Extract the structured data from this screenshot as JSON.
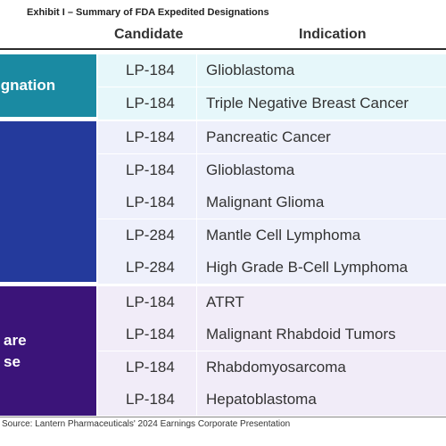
{
  "exhibit_title": "Exhibit I – Summary of FDA Expedited Designations",
  "headers": {
    "candidate": "Candidate",
    "indication": "Indication"
  },
  "groups": [
    {
      "label": "ignation",
      "color": "#1a8aa2"
    },
    {
      "label": "",
      "color": "#243a9c"
    },
    {
      "label_lines": [
        "are",
        "se"
      ],
      "color": "#3b1479"
    }
  ],
  "rows": [
    {
      "candidate": "LP-184",
      "indication": "Glioblastoma"
    },
    {
      "candidate": "LP-184",
      "indication": "Triple Negative Breast Cancer"
    },
    {
      "candidate": "LP-184",
      "indication": "Pancreatic Cancer"
    },
    {
      "candidate": "LP-184",
      "indication": "Glioblastoma"
    },
    {
      "candidate": "LP-184",
      "indication": "Malignant Glioma"
    },
    {
      "candidate": "LP-284",
      "indication": "Mantle Cell Lymphoma"
    },
    {
      "candidate": "LP-284",
      "indication": "High Grade B-Cell Lymphoma"
    },
    {
      "candidate": "LP-184",
      "indication": "ATRT"
    },
    {
      "candidate": "LP-184",
      "indication": "Malignant Rhabdoid Tumors"
    },
    {
      "candidate": "LP-184",
      "indication": "Rhabdomyosarcoma"
    },
    {
      "candidate": "LP-184",
      "indication": "Hepatoblastoma"
    }
  ],
  "source": "Source: Lantern Pharmaceuticals' 2024 Earnings Corporate Presentation"
}
